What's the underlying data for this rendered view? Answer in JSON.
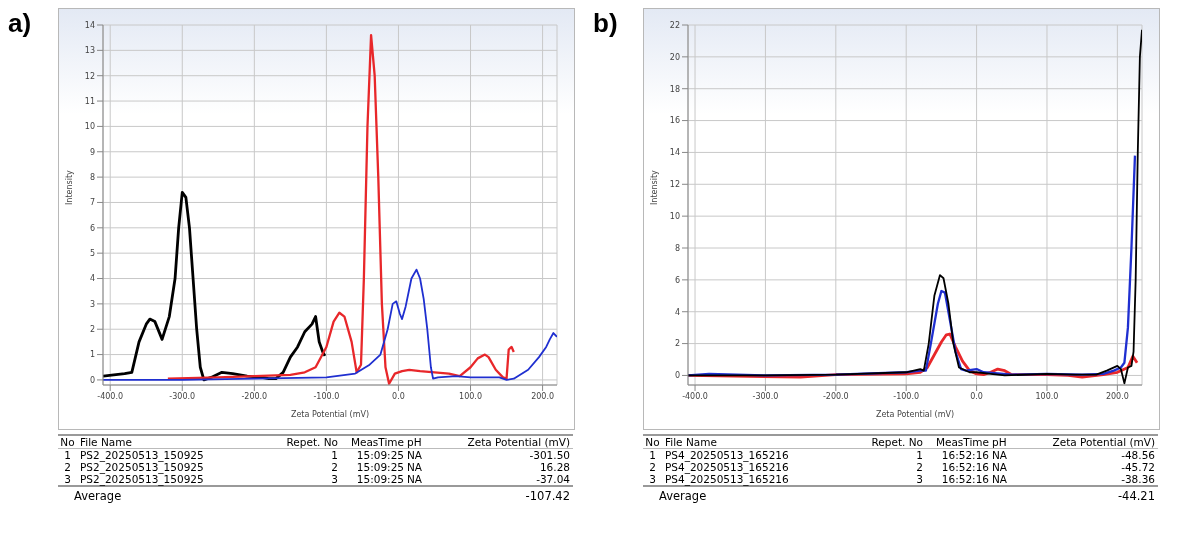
{
  "chart_data": [
    {
      "type": "line",
      "title": "a)",
      "xlabel": "Zeta Potential (mV)",
      "ylabel": "Intensity",
      "xlim": [
        -410,
        220
      ],
      "xticks": [
        {
          "value": -400,
          "label": "-400.0"
        },
        {
          "value": -300,
          "label": "-300.0"
        },
        {
          "value": -200,
          "label": "-200.0"
        },
        {
          "value": -100,
          "label": "-100.0"
        },
        {
          "value": 0,
          "label": "0.0"
        },
        {
          "value": 100,
          "label": "100.0"
        },
        {
          "value": 200,
          "label": "200.0"
        }
      ],
      "ylim": [
        -0.2,
        14
      ],
      "yticks": [
        0,
        1,
        2,
        3,
        4,
        5,
        6,
        7,
        8,
        9,
        10,
        11,
        12,
        13,
        14
      ],
      "grid": true,
      "legend": false,
      "marker": "none",
      "line_style": "solid",
      "series": [
        {
          "color": "#000000",
          "x": [
            -410,
            -380,
            -370,
            -360,
            -350,
            -345,
            -338,
            -328,
            -318,
            -310,
            -305,
            -300,
            -295,
            -290,
            -285,
            -280,
            -275,
            -270,
            -260,
            -245,
            -230,
            -210,
            -190,
            -180,
            -170,
            -160,
            -150,
            -140,
            -130,
            -120,
            -115,
            -110,
            -105,
            -102
          ],
          "values": [
            0.15,
            0.25,
            0.3,
            1.5,
            2.2,
            2.4,
            2.3,
            1.6,
            2.5,
            4,
            6,
            7.4,
            7.2,
            6,
            4,
            2,
            0.5,
            0,
            0.1,
            0.3,
            0.25,
            0.15,
            0.1,
            0.05,
            0.05,
            0.3,
            0.9,
            1.3,
            1.9,
            2.2,
            2.5,
            1.5,
            1.1,
            0.95
          ]
        },
        {
          "color": "#e8272a",
          "x": [
            -320,
            -250,
            -200,
            -150,
            -130,
            -115,
            -100,
            -90,
            -82,
            -75,
            -65,
            -58,
            -52,
            -48,
            -43,
            -38,
            -33,
            -28,
            -23,
            -18,
            -13,
            -5,
            5,
            15,
            30,
            50,
            70,
            85,
            100,
            110,
            120,
            125,
            135,
            145,
            150,
            153,
            157,
            160
          ],
          "values": [
            0.05,
            0.1,
            0.15,
            0.2,
            0.3,
            0.5,
            1.3,
            2.3,
            2.65,
            2.5,
            1.5,
            0.3,
            0.6,
            4,
            10,
            13.6,
            12,
            8,
            3,
            0.5,
            -0.15,
            0.25,
            0.35,
            0.4,
            0.35,
            0.3,
            0.25,
            0.15,
            0.5,
            0.85,
            1,
            0.9,
            0.4,
            0.1,
            0.05,
            1.2,
            1.3,
            1.1
          ]
        },
        {
          "color": "#1f2fd0",
          "x": [
            -410,
            -300,
            -200,
            -100,
            -60,
            -40,
            -25,
            -15,
            -8,
            -3,
            2,
            5,
            10,
            18,
            25,
            30,
            35,
            40,
            45,
            48,
            55,
            80,
            100,
            140,
            150,
            160,
            180,
            195,
            205,
            210,
            215,
            220
          ],
          "values": [
            0,
            0,
            0.05,
            0.1,
            0.25,
            0.6,
            1,
            2,
            3,
            3.1,
            2.6,
            2.4,
            2.9,
            4,
            4.35,
            4,
            3.2,
            2,
            0.5,
            0.05,
            0.1,
            0.15,
            0.1,
            0.1,
            0,
            0.05,
            0.4,
            0.9,
            1.3,
            1.6,
            1.85,
            1.7
          ]
        }
      ],
      "annotations": [
        "No",
        "File Name",
        "Repet. No",
        "MeasTime",
        "pH",
        "Zeta Potential (mV)",
        "1",
        "PS2_20250513_150925",
        "1",
        "15:09:25",
        "NA",
        "-301.50",
        "2",
        "PS2_20250513_150925",
        "2",
        "15:09:25",
        "NA",
        "16.28",
        "3",
        "PS2_20250513_150925",
        "3",
        "15:09:25",
        "NA",
        "-37.04",
        "Average",
        "-107.42"
      ]
    },
    {
      "type": "line",
      "title": "b)",
      "xlabel": "Zeta Potential (mV)",
      "ylabel": "Intensity",
      "xlim": [
        -410,
        235
      ],
      "xticks": [
        {
          "value": -400,
          "label": "-400.0"
        },
        {
          "value": -300,
          "label": "-300.0"
        },
        {
          "value": -200,
          "label": "-200.0"
        },
        {
          "value": -100,
          "label": "-100.0"
        },
        {
          "value": 0,
          "label": "0.0"
        },
        {
          "value": 100,
          "label": "100.0"
        },
        {
          "value": 200,
          "label": "200.0"
        }
      ],
      "ylim": [
        -0.6,
        22
      ],
      "yticks": [
        0,
        2,
        4,
        6,
        8,
        10,
        12,
        14,
        16,
        18,
        20,
        22
      ],
      "grid": true,
      "legend": false,
      "marker": "none",
      "line_style": "solid",
      "series": [
        {
          "color": "#e8272a",
          "x": [
            -410,
            -250,
            -200,
            -100,
            -80,
            -70,
            -60,
            -50,
            -43,
            -38,
            -30,
            -20,
            -10,
            0,
            10,
            20,
            30,
            40,
            50,
            100,
            130,
            150,
            180,
            200,
            215,
            222,
            228
          ],
          "values": [
            0,
            -0.1,
            0.05,
            0.1,
            0.2,
            0.5,
            1.3,
            2.1,
            2.55,
            2.6,
            1.8,
            0.9,
            0.3,
            0.1,
            0.05,
            0.2,
            0.4,
            0.3,
            0.05,
            0.05,
            0,
            -0.1,
            0.05,
            0.2,
            0.5,
            1.2,
            0.8
          ]
        },
        {
          "color": "#1f2fd0",
          "x": [
            -410,
            -380,
            -300,
            -200,
            -100,
            -80,
            -72,
            -65,
            -55,
            -50,
            -45,
            -38,
            -30,
            -22,
            -15,
            0,
            10,
            50,
            100,
            150,
            180,
            195,
            205,
            210,
            215,
            220,
            225
          ],
          "values": [
            0,
            0.1,
            0,
            0.05,
            0.2,
            0.3,
            0.3,
            2,
            4.5,
            5.3,
            5.2,
            3.5,
            1.5,
            0.4,
            0.3,
            0.4,
            0.2,
            0.05,
            0.1,
            0.05,
            0.1,
            0.3,
            0.5,
            0.8,
            3,
            8,
            13.8
          ]
        },
        {
          "color": "#000000",
          "x": [
            -410,
            -300,
            -200,
            -100,
            -80,
            -75,
            -68,
            -60,
            -52,
            -47,
            -40,
            -33,
            -25,
            -10,
            0,
            20,
            40,
            100,
            140,
            170,
            185,
            200,
            205,
            210,
            215,
            220,
            223,
            226,
            229,
            232,
            235
          ],
          "values": [
            0,
            0,
            0.05,
            0.2,
            0.4,
            0.3,
            2,
            5,
            6.3,
            6.1,
            4.5,
            2,
            0.5,
            0.2,
            0.2,
            0.1,
            0,
            0.1,
            0.05,
            0.05,
            0.3,
            0.6,
            0.4,
            -0.5,
            0.5,
            0.6,
            1.5,
            6,
            14,
            20,
            21.7
          ]
        }
      ],
      "annotations": [
        "No",
        "File Name",
        "Repet. No",
        "MeasTime",
        "pH",
        "Zeta Potential (mV)",
        "1",
        "PS4_20250513_165216",
        "1",
        "16:52:16",
        "NA",
        "-48.56",
        "2",
        "PS4_20250513_165216",
        "2",
        "16:52:16",
        "NA",
        "-45.72",
        "3",
        "PS4_20250513_165216",
        "3",
        "16:52:16",
        "NA",
        "-38.36",
        "Average",
        "-44.21"
      ]
    }
  ]
}
